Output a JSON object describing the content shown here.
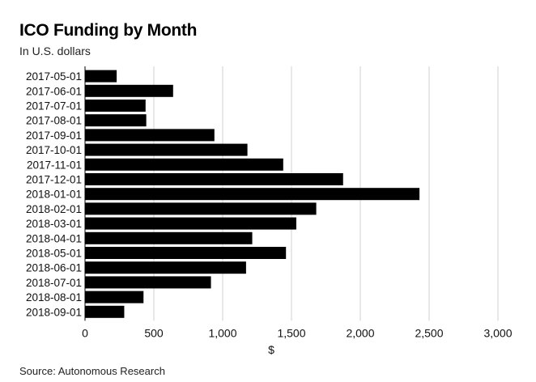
{
  "chart_data": {
    "type": "bar",
    "orientation": "horizontal",
    "title": "ICO Funding by Month",
    "subtitle": "In U.S. dollars",
    "xlabel": "$",
    "source": "Source: Autonomous Research",
    "xlim": [
      0,
      3000
    ],
    "xticks": [
      0,
      500,
      1000,
      1500,
      2000,
      2500,
      3000
    ],
    "xtick_labels": [
      "0",
      "500",
      "1,000",
      "1,500",
      "2,000",
      "2,500",
      "3,000"
    ],
    "grid": "vertical",
    "bar_color": "#000000",
    "categories": [
      "2017-05-01",
      "2017-06-01",
      "2017-07-01",
      "2017-08-01",
      "2017-09-01",
      "2017-10-01",
      "2017-11-01",
      "2017-12-01",
      "2018-01-01",
      "2018-02-01",
      "2018-03-01",
      "2018-04-01",
      "2018-05-01",
      "2018-06-01",
      "2018-07-01",
      "2018-08-01",
      "2018-09-01"
    ],
    "values": [
      230,
      640,
      440,
      445,
      940,
      1180,
      1440,
      1875,
      2430,
      1680,
      1535,
      1215,
      1460,
      1170,
      915,
      425,
      285
    ]
  }
}
